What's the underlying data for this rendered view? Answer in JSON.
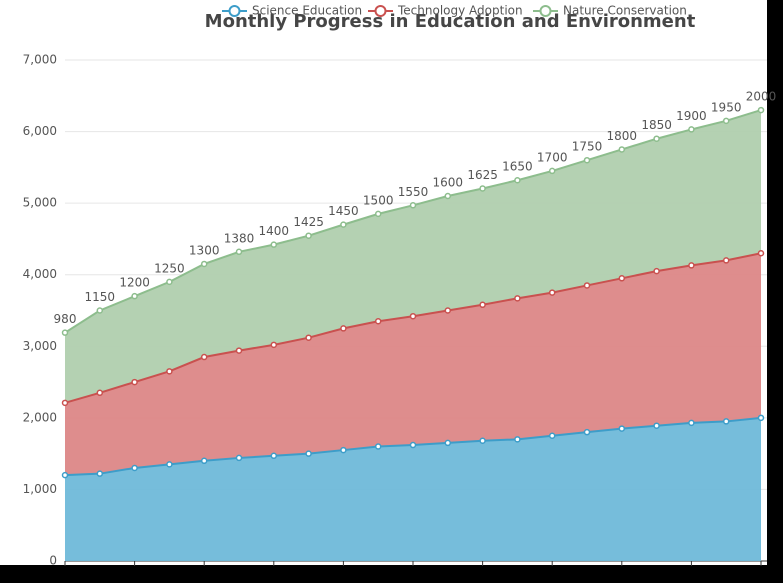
{
  "chart_data": {
    "type": "stacked-area",
    "title": "Monthly Progress in Education and Environment",
    "categories": [
      null,
      null,
      null,
      null,
      null,
      null,
      null,
      null,
      null,
      null,
      null,
      null,
      null,
      null,
      null,
      null,
      null,
      null,
      null,
      null,
      null
    ],
    "series": [
      {
        "name": "Science Education",
        "color": "#3d9dc9",
        "fill": "#6fb9d9",
        "values": [
          1200,
          1220,
          1300,
          1350,
          1400,
          1440,
          1470,
          1500,
          1550,
          1600,
          1620,
          1650,
          1680,
          1700,
          1750,
          1800,
          1850,
          1890,
          1930,
          1950,
          2000
        ]
      },
      {
        "name": "Technology Adoption",
        "color": "#c9514f",
        "fill": "#dc8787",
        "values": [
          1010,
          1130,
          1200,
          1300,
          1450,
          1500,
          1550,
          1620,
          1700,
          1750,
          1800,
          1850,
          1900,
          1970,
          2000,
          2050,
          2100,
          2160,
          2200,
          2250,
          2300
        ]
      },
      {
        "name": "Nature Conservation",
        "color": "#8dbd8d",
        "fill": "#b0cfae",
        "values": [
          980,
          1150,
          1200,
          1250,
          1300,
          1380,
          1400,
          1425,
          1450,
          1500,
          1550,
          1600,
          1625,
          1650,
          1700,
          1750,
          1800,
          1850,
          1900,
          1950,
          2000
        ]
      }
    ],
    "ylim": [
      0,
      7000
    ],
    "yticks": [
      0,
      {
        "value": 1000,
        "label": "1,000"
      },
      {
        "value": 2000,
        "label": "2,000"
      },
      {
        "value": 3000,
        "label": "3,000"
      },
      {
        "value": 4000,
        "label": "4,000"
      },
      {
        "value": 5000,
        "label": "5,000"
      },
      {
        "value": 6000,
        "label": "6,000"
      },
      {
        "value": 7000,
        "label": "7,000"
      }
    ],
    "grid": true
  }
}
